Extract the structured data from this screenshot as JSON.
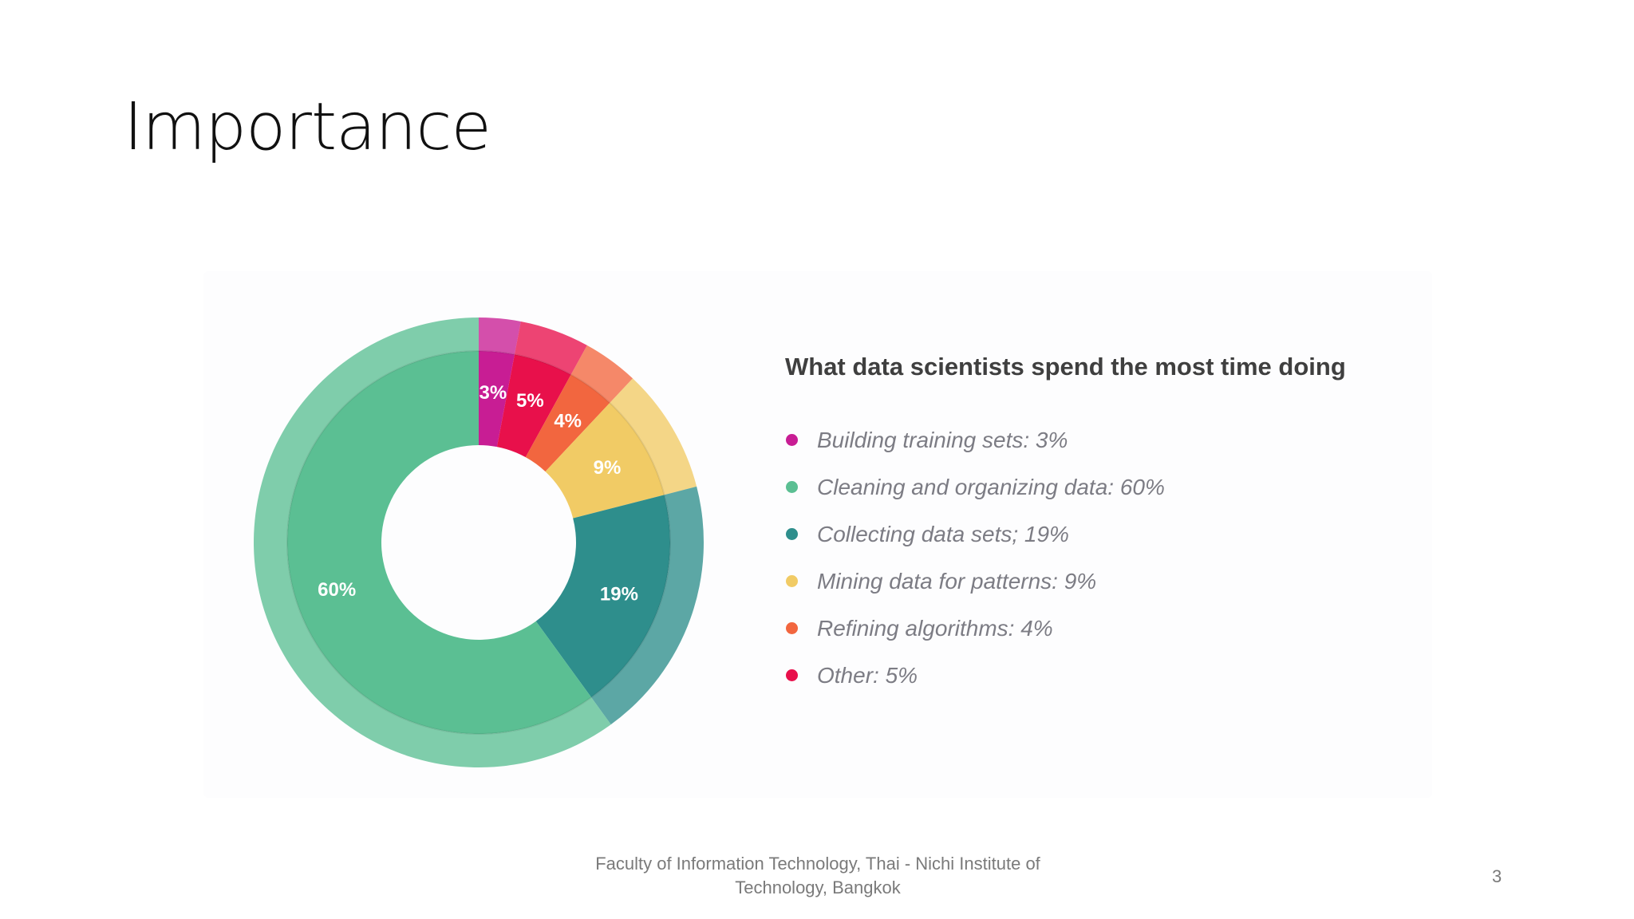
{
  "slide": {
    "title": "Importance",
    "footer_line1": "Faculty of Information Technology, Thai - Nichi Institute of",
    "footer_line2": "Technology, Bangkok",
    "page_number": "3"
  },
  "chart_data": {
    "type": "pie",
    "variant": "donut",
    "title": "What data scientists spend the most time doing",
    "legend_position": "right",
    "slices": [
      {
        "label": "Building training sets: 3%",
        "value": 3,
        "data_label": "3%",
        "color": "#c81d94"
      },
      {
        "label": "Other: 5%",
        "value": 5,
        "data_label": "5%",
        "color": "#e8104b"
      },
      {
        "label": "Refining algorithms: 4%",
        "value": 4,
        "data_label": "4%",
        "color": "#f2663f"
      },
      {
        "label": "Mining data for patterns: 9%",
        "value": 9,
        "data_label": "9%",
        "color": "#f1cb65"
      },
      {
        "label": "Collecting data sets; 19%",
        "value": 19,
        "data_label": "19%",
        "color": "#2e8e8c"
      },
      {
        "label": "Cleaning and organizing data: 60%",
        "value": 60,
        "data_label": "60%",
        "color": "#5bbf93"
      }
    ],
    "legend_order": [
      "Building training sets: 3%",
      "Cleaning and organizing data: 60%",
      "Collecting data sets; 19%",
      "Mining data for patterns: 9%",
      "Refining algorithms: 4%",
      "Other: 5%"
    ]
  }
}
